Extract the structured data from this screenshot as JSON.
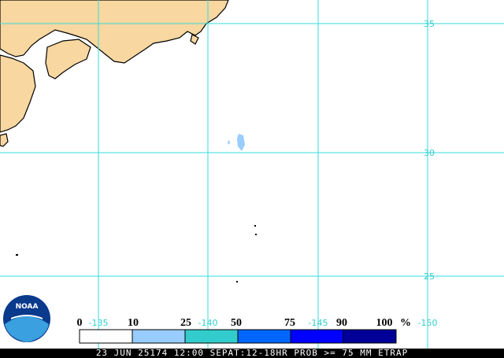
{
  "map": {
    "latitude_labels": [
      "35",
      "30",
      "25"
    ],
    "longitude_labels": [
      "-135",
      "-140",
      "-145",
      "-150"
    ],
    "legend": {
      "labels": [
        "0",
        "10",
        "25",
        "50",
        "75",
        "90",
        "100"
      ],
      "unit": "%"
    },
    "logo": "NOAA",
    "caption": "23 JUN 25174 12:00 SEPAT:12-18HR PROB >= 75 MM ETRAP"
  }
}
